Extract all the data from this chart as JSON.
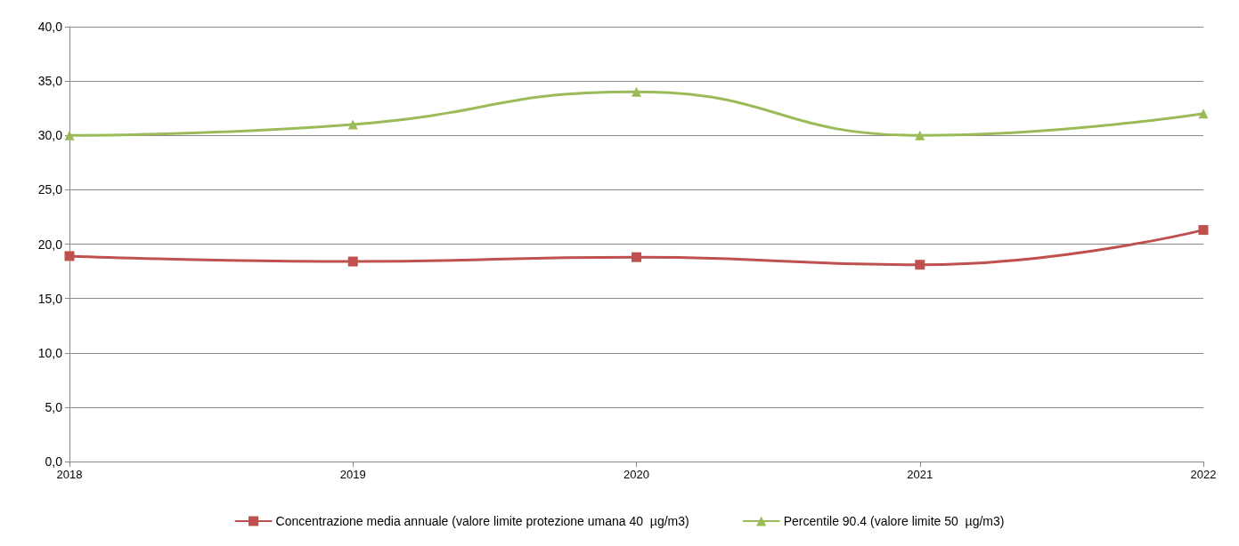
{
  "chart_data": {
    "type": "line",
    "categories": [
      "2018",
      "2019",
      "2020",
      "2021",
      "2022"
    ],
    "series": [
      {
        "name": "Concentrazione media annuale (valore limite protezione umana 40  µg/m3)",
        "color": "#c0504d",
        "marker": "square",
        "values": [
          18.9,
          18.4,
          18.8,
          18.1,
          21.3
        ]
      },
      {
        "name": "Percentile 90.4 (valore limite 50  µg/m3)",
        "color": "#9bbb59",
        "marker": "triangle",
        "values": [
          30,
          31,
          34,
          30,
          32
        ]
      }
    ],
    "ylim": [
      0,
      40
    ],
    "yticks": [
      {
        "value": 0,
        "label": "0,0"
      },
      {
        "value": 5,
        "label": "5,0"
      },
      {
        "value": 10,
        "label": "10,0"
      },
      {
        "value": 15,
        "label": "15,0"
      },
      {
        "value": 20,
        "label": "20,0"
      },
      {
        "value": 25,
        "label": "25,0"
      },
      {
        "value": 30,
        "label": "30,0"
      },
      {
        "value": 35,
        "label": "35,0"
      },
      {
        "value": 40,
        "label": "40,0"
      }
    ],
    "grid": "y",
    "legend": "bottom"
  }
}
